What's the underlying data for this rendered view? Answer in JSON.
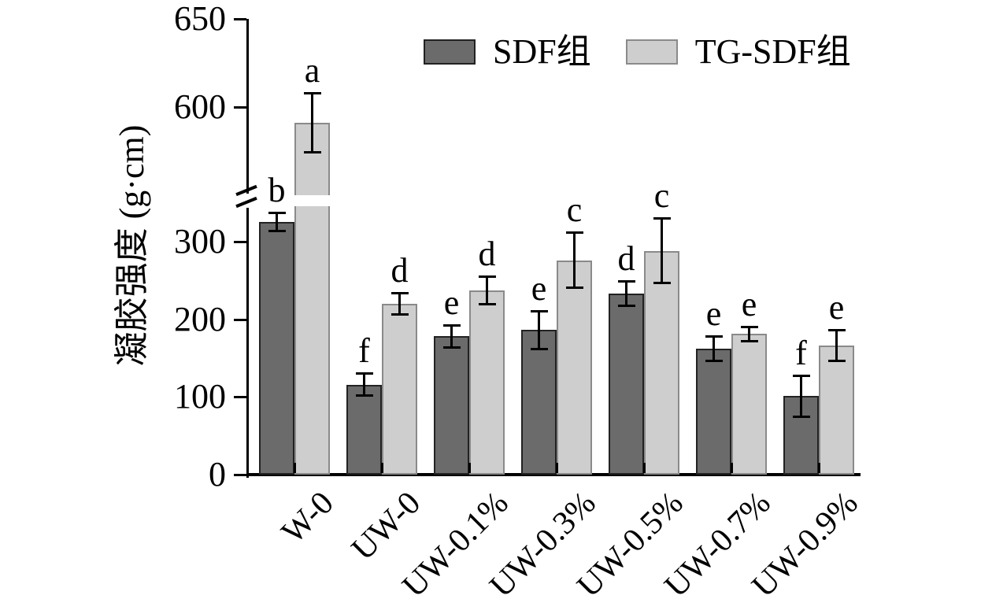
{
  "chart_data": {
    "type": "bar",
    "title": "",
    "xlabel": "",
    "ylabel": "凝胶强度 (g·cm)",
    "categories": [
      "W-0",
      "UW-0",
      "UW-0.1%",
      "UW-0.3%",
      "UW-0.5%",
      "UW-0.7%",
      "UW-0.9%"
    ],
    "series": [
      {
        "name": "SDF组",
        "color": "#6b6b6b",
        "border_color": "#222222",
        "values": [
          325,
          116,
          178,
          186,
          233,
          162,
          101
        ],
        "errors": [
          12,
          15,
          15,
          25,
          16,
          16,
          27
        ],
        "letters": [
          "b",
          "f",
          "e",
          "e",
          "d",
          "e",
          "f"
        ]
      },
      {
        "name": "TG-SDF组",
        "color": "#cecece",
        "border_color": "#8a8a8a",
        "values": [
          591,
          220,
          237,
          276,
          288,
          181,
          166
        ],
        "errors": [
          17,
          14,
          18,
          36,
          42,
          10,
          20
        ],
        "letters": [
          "a",
          "d",
          "d",
          "c",
          "c",
          "e",
          "e"
        ]
      }
    ],
    "y_axis": {
      "ticks_lower": [
        0,
        100,
        200,
        300
      ],
      "ticks_upper": [
        600,
        650
      ],
      "axis_break": [
        345,
        545
      ],
      "ylim": [
        0,
        650
      ]
    },
    "legend_position": "top-center",
    "grid": "off",
    "colors": {
      "axis": "#000000",
      "background": "#ffffff"
    }
  }
}
